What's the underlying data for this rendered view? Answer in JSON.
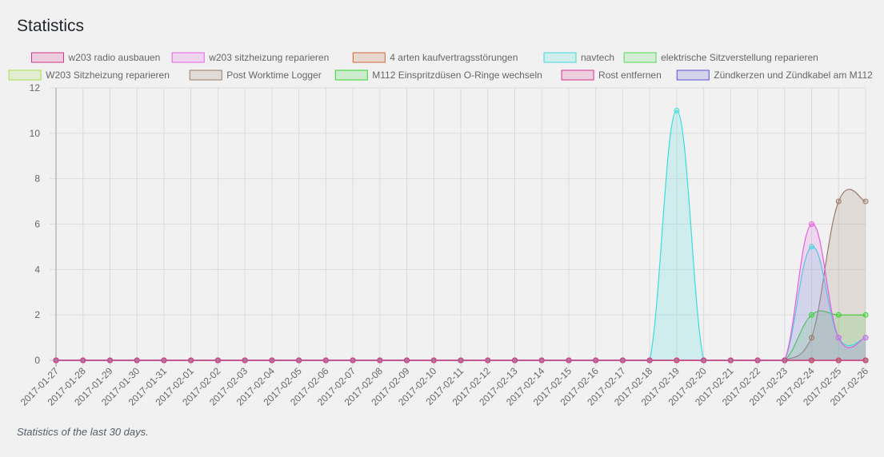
{
  "page": {
    "title": "Statistics",
    "caption": "Statistics of the last 30 days."
  },
  "chart_data": {
    "type": "area",
    "categories": [
      "2017-01-27",
      "2017-01-28",
      "2017-01-29",
      "2017-01-30",
      "2017-01-31",
      "2017-02-01",
      "2017-02-02",
      "2017-02-03",
      "2017-02-04",
      "2017-02-05",
      "2017-02-06",
      "2017-02-07",
      "2017-02-08",
      "2017-02-09",
      "2017-02-10",
      "2017-02-11",
      "2017-02-12",
      "2017-02-13",
      "2017-02-14",
      "2017-02-15",
      "2017-02-16",
      "2017-02-17",
      "2017-02-18",
      "2017-02-19",
      "2017-02-20",
      "2017-02-21",
      "2017-02-22",
      "2017-02-23",
      "2017-02-24",
      "2017-02-25",
      "2017-02-26"
    ],
    "ylim": [
      0,
      12
    ],
    "yticks": [
      0,
      2,
      4,
      6,
      8,
      10,
      12
    ],
    "grid": true,
    "legend_position": "top",
    "series": [
      {
        "name": "w203 radio ausbauen",
        "color": "#d6338e",
        "values": [
          0,
          0,
          0,
          0,
          0,
          0,
          0,
          0,
          0,
          0,
          0,
          0,
          0,
          0,
          0,
          0,
          0,
          0,
          0,
          0,
          0,
          0,
          0,
          0,
          0,
          0,
          0,
          0,
          0,
          0,
          0
        ]
      },
      {
        "name": "w203 sitzheizung reparieren",
        "color": "#e45ee4",
        "values": [
          0,
          0,
          0,
          0,
          0,
          0,
          0,
          0,
          0,
          0,
          0,
          0,
          0,
          0,
          0,
          0,
          0,
          0,
          0,
          0,
          0,
          0,
          0,
          0,
          0,
          0,
          0,
          0,
          6,
          1,
          1
        ]
      },
      {
        "name": "4 arten kaufvertragsstörungen",
        "color": "#c9693a",
        "values": [
          0,
          0,
          0,
          0,
          0,
          0,
          0,
          0,
          0,
          0,
          0,
          0,
          0,
          0,
          0,
          0,
          0,
          0,
          0,
          0,
          0,
          0,
          0,
          0,
          0,
          0,
          0,
          0,
          0,
          0,
          0
        ]
      },
      {
        "name": "navtech",
        "color": "#3bdcdc",
        "values": [
          0,
          0,
          0,
          0,
          0,
          0,
          0,
          0,
          0,
          0,
          0,
          0,
          0,
          0,
          0,
          0,
          0,
          0,
          0,
          0,
          0,
          0,
          0,
          11,
          0,
          0,
          0,
          0,
          5,
          1,
          1
        ]
      },
      {
        "name": "elektrische Sitzverstellung reparieren",
        "color": "#51de51",
        "values": [
          0,
          0,
          0,
          0,
          0,
          0,
          0,
          0,
          0,
          0,
          0,
          0,
          0,
          0,
          0,
          0,
          0,
          0,
          0,
          0,
          0,
          0,
          0,
          0,
          0,
          0,
          0,
          0,
          0,
          0,
          0
        ]
      },
      {
        "name": "W203 Sitzheizung reparieren",
        "color": "#a8e04a",
        "values": [
          0,
          0,
          0,
          0,
          0,
          0,
          0,
          0,
          0,
          0,
          0,
          0,
          0,
          0,
          0,
          0,
          0,
          0,
          0,
          0,
          0,
          0,
          0,
          0,
          0,
          0,
          0,
          0,
          0,
          0,
          0
        ]
      },
      {
        "name": "Post Worktime Logger",
        "color": "#9b7b67",
        "values": [
          0,
          0,
          0,
          0,
          0,
          0,
          0,
          0,
          0,
          0,
          0,
          0,
          0,
          0,
          0,
          0,
          0,
          0,
          0,
          0,
          0,
          0,
          0,
          0,
          0,
          0,
          0,
          0,
          1,
          7,
          7
        ]
      },
      {
        "name": "M112 Einspritzdüsen O-Ringe wechseln",
        "color": "#2fd62f",
        "values": [
          0,
          0,
          0,
          0,
          0,
          0,
          0,
          0,
          0,
          0,
          0,
          0,
          0,
          0,
          0,
          0,
          0,
          0,
          0,
          0,
          0,
          0,
          0,
          0,
          0,
          0,
          0,
          0,
          2,
          2,
          2
        ]
      },
      {
        "name": "Rost entfernen",
        "color": "#d6338e",
        "values": [
          0,
          0,
          0,
          0,
          0,
          0,
          0,
          0,
          0,
          0,
          0,
          0,
          0,
          0,
          0,
          0,
          0,
          0,
          0,
          0,
          0,
          0,
          0,
          0,
          0,
          0,
          0,
          0,
          0,
          0,
          0
        ]
      },
      {
        "name": "Zündkerzen und Zündkabel am M112",
        "color": "#5a4fd8",
        "values": [
          0,
          0,
          0,
          0,
          0,
          0,
          0,
          0,
          0,
          0,
          0,
          0,
          0,
          0,
          0,
          0,
          0,
          0,
          0,
          0,
          0,
          0,
          0,
          0,
          0,
          0,
          0,
          0,
          0,
          0,
          0
        ]
      }
    ]
  }
}
